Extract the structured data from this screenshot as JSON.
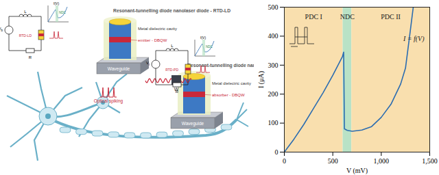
{
  "diagram": {
    "rtd_ld": {
      "title": "Resonant-tunnelling diode nanolaser diode - RTD-LD",
      "cavity": "Metal dielectric cavity",
      "active": "emitter - DBQW",
      "base": "Waveguide"
    },
    "rtd_pd": {
      "title": "Resonant-tunnelling diode nanophotodiode - RTD-PD",
      "cavity": "Metal dielectric cavity",
      "active": "absorber - DBQW",
      "base": "Waveguide"
    },
    "link": {
      "weight": "W",
      "signal": "Optical spiking"
    },
    "circuits": [
      {
        "tag": "RTD-LD",
        "inductor": "L",
        "resistor": "R",
        "source": {
          "base": "V",
          "sub": "b"
        },
        "inset": {
          "curve": "f(V)",
          "region": "NDC"
        }
      },
      {
        "tag": "RTD-PD",
        "inductor": "L",
        "resistor": "R",
        "source": {
          "base": "V",
          "sub": "i"
        },
        "inset": {
          "curve": "f(V)",
          "region": "NDC"
        }
      }
    ]
  },
  "chart_data": {
    "type": "line",
    "x_label": "V (mV)",
    "y_label": "I (μA)",
    "annotation": "I = f(V)",
    "x": [
      0,
      100,
      200,
      300,
      400,
      500,
      600,
      612,
      620,
      650,
      700,
      800,
      900,
      1000,
      1100,
      1200,
      1250,
      1300,
      1330
    ],
    "values": [
      0,
      45,
      95,
      150,
      205,
      265,
      330,
      345,
      80,
      75,
      72,
      76,
      88,
      120,
      165,
      235,
      290,
      420,
      500
    ],
    "color": "#2b6cb0",
    "xlim": [
      0,
      1500
    ],
    "xticks": [
      0,
      500,
      1000,
      1500
    ],
    "ylim": [
      0,
      500
    ],
    "yticks": [
      0,
      100,
      200,
      300,
      400,
      500
    ],
    "regions": [
      {
        "label": "PDC I",
        "from": 0,
        "to": 605,
        "color": "#f9dfae"
      },
      {
        "label": "NDC",
        "from": 605,
        "to": 695,
        "color": "#b9e2c6"
      },
      {
        "label": "PDC II",
        "from": 695,
        "to": 1500,
        "color": "#f9dfae"
      }
    ]
  }
}
